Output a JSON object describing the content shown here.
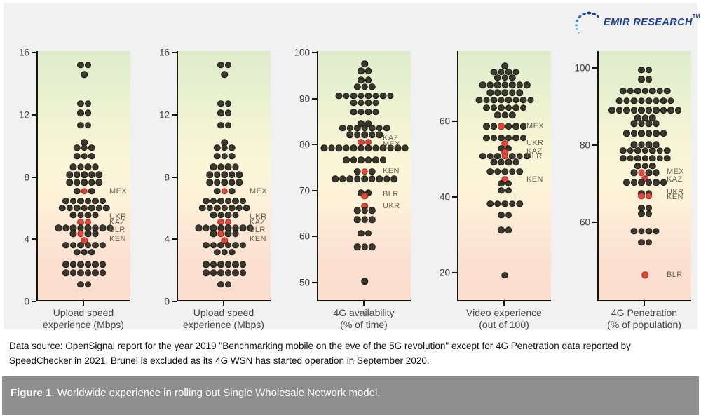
{
  "logo": {
    "text": "EMIR RESEARCH",
    "tm": "TM",
    "color": "#21409a"
  },
  "colors": {
    "page_bg": "#ffffff",
    "chart_bg": "#f1f1f2",
    "dot_fill": "#3b382e",
    "dot_border": "#191811",
    "highlight_fill": "#e5453c",
    "highlight_border": "#93261d",
    "gradient_top_good": "#e0edcc",
    "gradient_mid_neutral": "#fcf6d8",
    "gradient_bottom_bad": "#fbdccd",
    "figure_bar_bg": "#8e8e8e",
    "figure_bar_text": "#ffffff"
  },
  "source_note": [
    "Data source: OpenSignal report for the year 2019 \"Benchmarking mobile on the eve of the 5G revolution\" except for 4G Penetration data reported by",
    "SpeedChecker in 2021. Brunei is excluded as its 4G WSN has started operation in September 2020."
  ],
  "figure_caption": {
    "prefix": "Figure 1",
    "rest": ". Worldwide experience in rolling out Single Wholesale Network model."
  },
  "chart_data": [
    {
      "type": "scatter",
      "subtype": "beeswarm-strip",
      "xlabel": [
        "Upload speed",
        "experience (Mbps)"
      ],
      "ylim": [
        0,
        16.1
      ],
      "yticks": [
        0,
        4,
        8,
        12,
        16
      ],
      "grid": false,
      "rows": [
        {
          "v": 15.2,
          "p": "dd"
        },
        {
          "v": 14.6,
          "p": "d"
        },
        {
          "v": 12.7,
          "p": "dd"
        },
        {
          "v": 12.1,
          "p": "dd"
        },
        {
          "v": 11.3,
          "p": "dd"
        },
        {
          "v": 10.2,
          "p": "d"
        },
        {
          "v": 9.85,
          "p": "ddd"
        },
        {
          "v": 9.3,
          "p": "ddd"
        },
        {
          "v": 8.6,
          "p": "dddd"
        },
        {
          "v": 8.1,
          "p": "ddddd"
        },
        {
          "v": 7.6,
          "p": "ddddd"
        },
        {
          "v": 7.05,
          "p": "drd"
        },
        {
          "v": 6.4,
          "p": "dddddd"
        },
        {
          "v": 5.95,
          "p": "ddddddd"
        },
        {
          "v": 5.5,
          "p": "dddd"
        },
        {
          "v": 5.05,
          "p": "rr"
        },
        {
          "v": 4.65,
          "p": "dddddddd"
        },
        {
          "v": 4.3,
          "p": "drdd"
        },
        {
          "v": 3.85,
          "p": "r"
        },
        {
          "v": 3.55,
          "p": "dddddd"
        },
        {
          "v": 3.1,
          "p": "ddd"
        },
        {
          "v": 2.3,
          "p": "dddddd"
        },
        {
          "v": 1.75,
          "p": "dddddd"
        },
        {
          "v": 1.0,
          "p": "dd"
        }
      ],
      "highlights": [
        {
          "label": "MEX",
          "v": 7.05
        },
        {
          "label": "UKR",
          "v": 5.4
        },
        {
          "label": "KAZ",
          "v": 5.05
        },
        {
          "label": "BLR",
          "v": 4.55
        },
        {
          "label": "KEN",
          "v": 3.95
        }
      ]
    },
    {
      "type": "scatter",
      "subtype": "beeswarm-strip",
      "xlabel": [
        "Upload speed",
        "experience (Mbps)"
      ],
      "ylim": [
        0,
        16.1
      ],
      "yticks": [
        0,
        4,
        8,
        12,
        16
      ],
      "grid": false,
      "rows": [
        {
          "v": 15.2,
          "p": "dd"
        },
        {
          "v": 14.6,
          "p": "d"
        },
        {
          "v": 12.7,
          "p": "dd"
        },
        {
          "v": 12.1,
          "p": "dd"
        },
        {
          "v": 11.3,
          "p": "dd"
        },
        {
          "v": 10.2,
          "p": "d"
        },
        {
          "v": 9.85,
          "p": "ddd"
        },
        {
          "v": 9.3,
          "p": "ddd"
        },
        {
          "v": 8.6,
          "p": "dddd"
        },
        {
          "v": 8.1,
          "p": "ddddd"
        },
        {
          "v": 7.6,
          "p": "ddddd"
        },
        {
          "v": 7.05,
          "p": "drd"
        },
        {
          "v": 6.4,
          "p": "dddddd"
        },
        {
          "v": 5.95,
          "p": "ddddddd"
        },
        {
          "v": 5.5,
          "p": "dddd"
        },
        {
          "v": 5.05,
          "p": "rr"
        },
        {
          "v": 4.65,
          "p": "dddddddd"
        },
        {
          "v": 4.3,
          "p": "drdd"
        },
        {
          "v": 3.85,
          "p": "r"
        },
        {
          "v": 3.55,
          "p": "dddddd"
        },
        {
          "v": 3.1,
          "p": "ddd"
        },
        {
          "v": 2.3,
          "p": "dddddd"
        },
        {
          "v": 1.75,
          "p": "dddddd"
        },
        {
          "v": 1.0,
          "p": "dd"
        }
      ],
      "highlights": [
        {
          "label": "MEX",
          "v": 7.05
        },
        {
          "label": "UKR",
          "v": 5.4
        },
        {
          "label": "KAZ",
          "v": 5.05
        },
        {
          "label": "BLR",
          "v": 4.55
        },
        {
          "label": "KEN",
          "v": 3.95
        }
      ]
    },
    {
      "type": "scatter",
      "subtype": "beeswarm-strip",
      "xlabel": [
        "4G availability",
        "(% of time)"
      ],
      "ylim": [
        45.9,
        100.3
      ],
      "yticks": [
        50,
        60,
        70,
        80,
        90,
        100
      ],
      "grid": false,
      "rows": [
        {
          "v": 97.5,
          "p": "d"
        },
        {
          "v": 96,
          "p": "dd"
        },
        {
          "v": 94,
          "p": "dd"
        },
        {
          "v": 92.5,
          "p": "ddd"
        },
        {
          "v": 90.5,
          "p": "dddddddd"
        },
        {
          "v": 89,
          "p": "dddd"
        },
        {
          "v": 87,
          "p": "dddd"
        },
        {
          "v": 84.5,
          "p": "dd"
        },
        {
          "v": 83.5,
          "p": "ddddddd"
        },
        {
          "v": 82,
          "p": "ddddd"
        },
        {
          "v": 80.4,
          "p": "rr"
        },
        {
          "v": 79.1,
          "p": "dddddddddddd"
        },
        {
          "v": 76.5,
          "p": "dddddd"
        },
        {
          "v": 74,
          "p": "drd"
        },
        {
          "v": 72.4,
          "p": "ddddddddd"
        },
        {
          "v": 69.3,
          "p": "dd"
        },
        {
          "v": 68.6,
          "p": "r"
        },
        {
          "v": 66.4,
          "p": "r"
        },
        {
          "v": 65.5,
          "p": "ddd"
        },
        {
          "v": 63.5,
          "p": "ddd"
        },
        {
          "v": 60.5,
          "p": "dd"
        },
        {
          "v": 57.5,
          "p": "ddd"
        },
        {
          "v": 50,
          "p": "d"
        }
      ],
      "highlights": [
        {
          "label": "KAZ",
          "v": 81.3
        },
        {
          "label": "MEX",
          "v": 79.9
        },
        {
          "label": "KEN",
          "v": 74.1
        },
        {
          "label": "BLR",
          "v": 69.0
        },
        {
          "label": "UKR",
          "v": 66.4
        }
      ]
    },
    {
      "type": "scatter",
      "subtype": "beeswarm-strip",
      "xlabel": [
        "Video experience",
        "(out of 100)"
      ],
      "ylim": [
        12.4,
        78.5
      ],
      "yticks": [
        20,
        40,
        60
      ],
      "grid": false,
      "rows": [
        {
          "v": 74.5,
          "p": "d"
        },
        {
          "v": 73,
          "p": "dddd"
        },
        {
          "v": 71.5,
          "p": "ddd"
        },
        {
          "v": 69.5,
          "p": "ddddddd"
        },
        {
          "v": 67.5,
          "p": "ddddd"
        },
        {
          "v": 65.5,
          "p": "dddddddd"
        },
        {
          "v": 63.5,
          "p": "dddddd"
        },
        {
          "v": 61.5,
          "p": "ddd"
        },
        {
          "v": 58.5,
          "p": "ddrddd"
        },
        {
          "v": 55.5,
          "p": "dddddd"
        },
        {
          "v": 54,
          "p": "r"
        },
        {
          "v": 52.7,
          "p": "dd"
        },
        {
          "v": 51.6,
          "p": "r"
        },
        {
          "v": 50.6,
          "p": "dddrddd"
        },
        {
          "v": 49,
          "p": "dddd"
        },
        {
          "v": 46.5,
          "p": "ddddd"
        },
        {
          "v": 44.4,
          "p": "r"
        },
        {
          "v": 43.4,
          "p": "dd"
        },
        {
          "v": 41.5,
          "p": "dd"
        },
        {
          "v": 38,
          "p": "ddddd"
        },
        {
          "v": 35,
          "p": "dd"
        },
        {
          "v": 31,
          "p": "dd"
        },
        {
          "v": 19,
          "p": "d"
        }
      ],
      "highlights": [
        {
          "label": "MEX",
          "v": 58.5
        },
        {
          "label": "UKR",
          "v": 54.2
        },
        {
          "label": "KAZ",
          "v": 51.9
        },
        {
          "label": "BLR",
          "v": 50.5
        },
        {
          "label": "KEN",
          "v": 44.4
        }
      ]
    },
    {
      "type": "scatter",
      "subtype": "beeswarm-strip",
      "xlabel": [
        "4G Penetration",
        "(% of population)"
      ],
      "ylim": [
        39.5,
        104.4
      ],
      "yticks": [
        60,
        80,
        100
      ],
      "grid": false,
      "rows": [
        {
          "v": 99.5,
          "p": "dd"
        },
        {
          "v": 97,
          "p": "dd"
        },
        {
          "v": 94,
          "p": "ddddddd"
        },
        {
          "v": 91.5,
          "p": "dddddddd"
        },
        {
          "v": 89,
          "p": "dddddddddd"
        },
        {
          "v": 87,
          "p": "ddd"
        },
        {
          "v": 85.5,
          "p": "dddd"
        },
        {
          "v": 83,
          "p": "dddddd"
        },
        {
          "v": 80,
          "p": "dddd"
        },
        {
          "v": 78.5,
          "p": "ddddddd"
        },
        {
          "v": 76.5,
          "p": "ddddddd"
        },
        {
          "v": 74.5,
          "p": "ddd"
        },
        {
          "v": 72.7,
          "p": "drdd"
        },
        {
          "v": 71.2,
          "p": "r"
        },
        {
          "v": 70.2,
          "p": "dddddd"
        },
        {
          "v": 67.2,
          "p": "dd"
        },
        {
          "v": 66.6,
          "p": "rr"
        },
        {
          "v": 63.5,
          "p": "dd"
        },
        {
          "v": 62,
          "p": "dd"
        },
        {
          "v": 57.5,
          "p": "dddd"
        },
        {
          "v": 54.5,
          "p": "dd"
        },
        {
          "v": 46,
          "p": "r"
        }
      ],
      "highlights": [
        {
          "label": "MEX",
          "v": 73.0
        },
        {
          "label": "KAZ",
          "v": 71.0
        },
        {
          "label": "UKR",
          "v": 67.7
        },
        {
          "label": "KEN",
          "v": 66.3
        },
        {
          "label": "BLR",
          "v": 46.0
        }
      ]
    }
  ]
}
